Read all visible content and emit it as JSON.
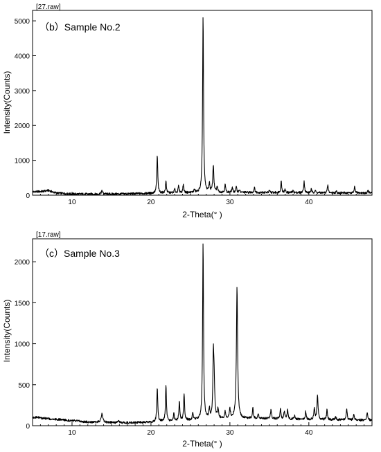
{
  "chart_data": [
    {
      "type": "line",
      "file_label": "[27.raw]",
      "title": "（b）Sample No.2",
      "xlabel": "2-Theta(°  )",
      "ylabel": "Intensity(Counts)",
      "xlim": [
        5,
        48
      ],
      "ylim": [
        0,
        5300
      ],
      "x_ticks": [
        10,
        20,
        30,
        40
      ],
      "y_ticks": [
        0,
        1000,
        2000,
        3000,
        4000,
        5000
      ],
      "baseline": [
        [
          5,
          95
        ],
        [
          7,
          105
        ],
        [
          8,
          60
        ],
        [
          10,
          35
        ],
        [
          13,
          30
        ],
        [
          16,
          35
        ],
        [
          20,
          55
        ],
        [
          25,
          70
        ],
        [
          30,
          80
        ],
        [
          35,
          75
        ],
        [
          40,
          70
        ],
        [
          45,
          65
        ],
        [
          48,
          60
        ]
      ],
      "peaks": [
        {
          "x": 7.0,
          "y": 30,
          "w": 0.5
        },
        {
          "x": 13.8,
          "y": 90,
          "w": 0.12
        },
        {
          "x": 20.8,
          "y": 1080,
          "w": 0.07
        },
        {
          "x": 21.9,
          "y": 340,
          "w": 0.07
        },
        {
          "x": 23.0,
          "y": 110,
          "w": 0.07
        },
        {
          "x": 23.5,
          "y": 200,
          "w": 0.07
        },
        {
          "x": 24.1,
          "y": 240,
          "w": 0.07
        },
        {
          "x": 25.5,
          "y": 80,
          "w": 0.08
        },
        {
          "x": 26.6,
          "y": 5100,
          "w": 0.07
        },
        {
          "x": 27.4,
          "y": 250,
          "w": 0.08
        },
        {
          "x": 27.9,
          "y": 780,
          "w": 0.08
        },
        {
          "x": 28.4,
          "y": 150,
          "w": 0.08
        },
        {
          "x": 29.4,
          "y": 220,
          "w": 0.07
        },
        {
          "x": 30.3,
          "y": 140,
          "w": 0.07
        },
        {
          "x": 30.8,
          "y": 160,
          "w": 0.07
        },
        {
          "x": 31.2,
          "y": 80,
          "w": 0.07
        },
        {
          "x": 33.1,
          "y": 150,
          "w": 0.07
        },
        {
          "x": 35.0,
          "y": 50,
          "w": 0.08
        },
        {
          "x": 36.5,
          "y": 330,
          "w": 0.07
        },
        {
          "x": 37.0,
          "y": 90,
          "w": 0.07
        },
        {
          "x": 38.0,
          "y": 50,
          "w": 0.08
        },
        {
          "x": 39.4,
          "y": 330,
          "w": 0.07
        },
        {
          "x": 40.3,
          "y": 100,
          "w": 0.07
        },
        {
          "x": 40.8,
          "y": 70,
          "w": 0.07
        },
        {
          "x": 42.4,
          "y": 220,
          "w": 0.07
        },
        {
          "x": 43.5,
          "y": 40,
          "w": 0.08
        },
        {
          "x": 45.8,
          "y": 170,
          "w": 0.07
        },
        {
          "x": 47.5,
          "y": 70,
          "w": 0.08
        }
      ]
    },
    {
      "type": "line",
      "file_label": "[17.raw]",
      "title": "（c）Sample No.3",
      "xlabel": "2-Theta(°  )",
      "ylabel": "Intensity(Counts)",
      "xlim": [
        5,
        48
      ],
      "ylim": [
        0,
        2280
      ],
      "x_ticks": [
        10,
        20,
        30,
        40
      ],
      "y_ticks": [
        0,
        500,
        1000,
        1500,
        2000
      ],
      "baseline": [
        [
          5,
          105
        ],
        [
          7,
          85
        ],
        [
          9,
          70
        ],
        [
          12,
          45
        ],
        [
          16,
          35
        ],
        [
          19,
          40
        ],
        [
          22,
          55
        ],
        [
          26,
          70
        ],
        [
          30,
          90
        ],
        [
          35,
          85
        ],
        [
          40,
          75
        ],
        [
          45,
          70
        ],
        [
          48,
          65
        ]
      ],
      "peaks": [
        {
          "x": 13.8,
          "y": 110,
          "w": 0.12
        },
        {
          "x": 15.9,
          "y": 20,
          "w": 0.1
        },
        {
          "x": 20.8,
          "y": 420,
          "w": 0.07
        },
        {
          "x": 21.9,
          "y": 450,
          "w": 0.07
        },
        {
          "x": 22.9,
          "y": 90,
          "w": 0.07
        },
        {
          "x": 23.6,
          "y": 240,
          "w": 0.07
        },
        {
          "x": 24.2,
          "y": 330,
          "w": 0.07
        },
        {
          "x": 25.3,
          "y": 80,
          "w": 0.08
        },
        {
          "x": 26.6,
          "y": 2160,
          "w": 0.07
        },
        {
          "x": 27.4,
          "y": 120,
          "w": 0.08
        },
        {
          "x": 27.9,
          "y": 700,
          "w": 0.07
        },
        {
          "x": 28.0,
          "y": 430,
          "w": 0.09
        },
        {
          "x": 28.5,
          "y": 120,
          "w": 0.08
        },
        {
          "x": 29.4,
          "y": 90,
          "w": 0.07
        },
        {
          "x": 30.0,
          "y": 110,
          "w": 0.08
        },
        {
          "x": 30.9,
          "y": 1600,
          "w": 0.09
        },
        {
          "x": 32.9,
          "y": 130,
          "w": 0.07
        },
        {
          "x": 33.6,
          "y": 60,
          "w": 0.08
        },
        {
          "x": 35.2,
          "y": 110,
          "w": 0.08
        },
        {
          "x": 36.4,
          "y": 120,
          "w": 0.07
        },
        {
          "x": 36.9,
          "y": 100,
          "w": 0.07
        },
        {
          "x": 37.3,
          "y": 110,
          "w": 0.07
        },
        {
          "x": 38.2,
          "y": 40,
          "w": 0.08
        },
        {
          "x": 39.6,
          "y": 100,
          "w": 0.07
        },
        {
          "x": 40.7,
          "y": 130,
          "w": 0.08
        },
        {
          "x": 41.1,
          "y": 300,
          "w": 0.08
        },
        {
          "x": 42.3,
          "y": 120,
          "w": 0.07
        },
        {
          "x": 43.4,
          "y": 40,
          "w": 0.08
        },
        {
          "x": 44.8,
          "y": 130,
          "w": 0.07
        },
        {
          "x": 45.7,
          "y": 60,
          "w": 0.08
        },
        {
          "x": 47.4,
          "y": 90,
          "w": 0.08
        }
      ]
    }
  ]
}
